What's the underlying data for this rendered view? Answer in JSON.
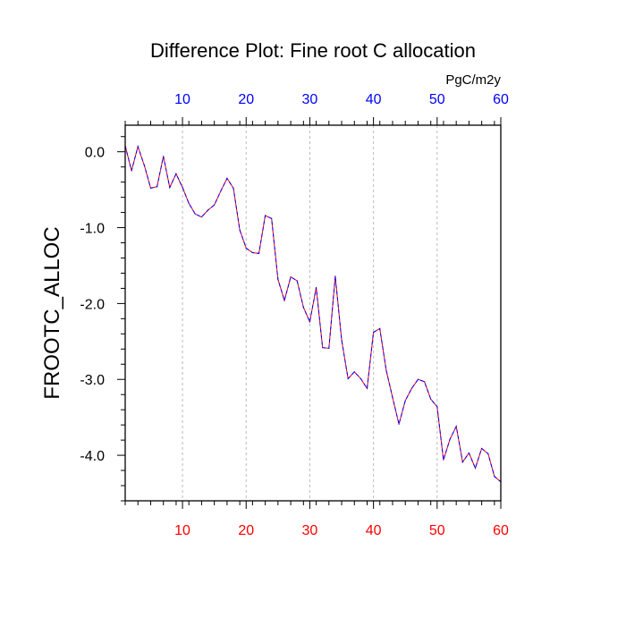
{
  "chart_data": {
    "type": "line",
    "title": "Difference Plot: Fine root C allocation",
    "units": "PgC/m2y",
    "ylabel": "FROOTC_ALLOC",
    "xlabel": "",
    "xlim": [
      1,
      60
    ],
    "ylim": [
      -4.6,
      0.35
    ],
    "x_ticks": [
      10,
      20,
      30,
      40,
      50,
      60
    ],
    "x_tick_labels": [
      "10",
      "20",
      "30",
      "40",
      "50",
      "60"
    ],
    "y_ticks": [
      0.0,
      -1.0,
      -2.0,
      -3.0,
      -4.0
    ],
    "y_tick_labels": [
      "0.0",
      "-1.0",
      "-2.0",
      "-3.0",
      "-4.0"
    ],
    "grid": "vertical dashed at x ticks",
    "colors": {
      "top_axis_labels": "#0000ff",
      "bottom_axis_labels": "#ff0000",
      "line_primary": "#ff0000",
      "line_secondary": "#0000ff",
      "grid": "#bbbbbb",
      "axis": "#000000"
    },
    "series": [
      {
        "x": [
          1,
          2,
          3,
          4,
          5,
          6,
          7,
          8,
          9,
          10,
          11,
          12,
          13,
          14,
          15,
          16,
          17,
          18,
          19,
          20,
          21,
          22,
          23,
          24,
          25,
          26,
          27,
          28,
          29,
          30,
          31,
          32,
          33,
          34,
          35,
          36,
          37,
          38,
          39,
          40,
          41,
          42,
          43,
          44,
          45,
          46,
          47,
          48,
          49,
          50,
          51,
          52,
          53,
          54,
          55,
          56,
          57,
          58,
          59,
          60
        ],
        "values": [
          0.08,
          -0.25,
          0.07,
          -0.18,
          -0.48,
          -0.46,
          -0.06,
          -0.47,
          -0.29,
          -0.47,
          -0.68,
          -0.82,
          -0.86,
          -0.77,
          -0.7,
          -0.52,
          -0.35,
          -0.48,
          -1.03,
          -1.27,
          -1.33,
          -1.34,
          -0.84,
          -0.88,
          -1.68,
          -1.96,
          -1.65,
          -1.7,
          -2.05,
          -2.24,
          -1.79,
          -2.58,
          -2.59,
          -1.64,
          -2.48,
          -2.99,
          -2.9,
          -2.99,
          -3.12,
          -2.38,
          -2.33,
          -2.88,
          -3.24,
          -3.59,
          -3.28,
          -3.12,
          -3.0,
          -3.03,
          -3.26,
          -3.36,
          -4.06,
          -3.79,
          -3.62,
          -4.09,
          -3.97,
          -4.17,
          -3.91,
          -3.98,
          -4.28,
          -4.35
        ]
      }
    ]
  }
}
